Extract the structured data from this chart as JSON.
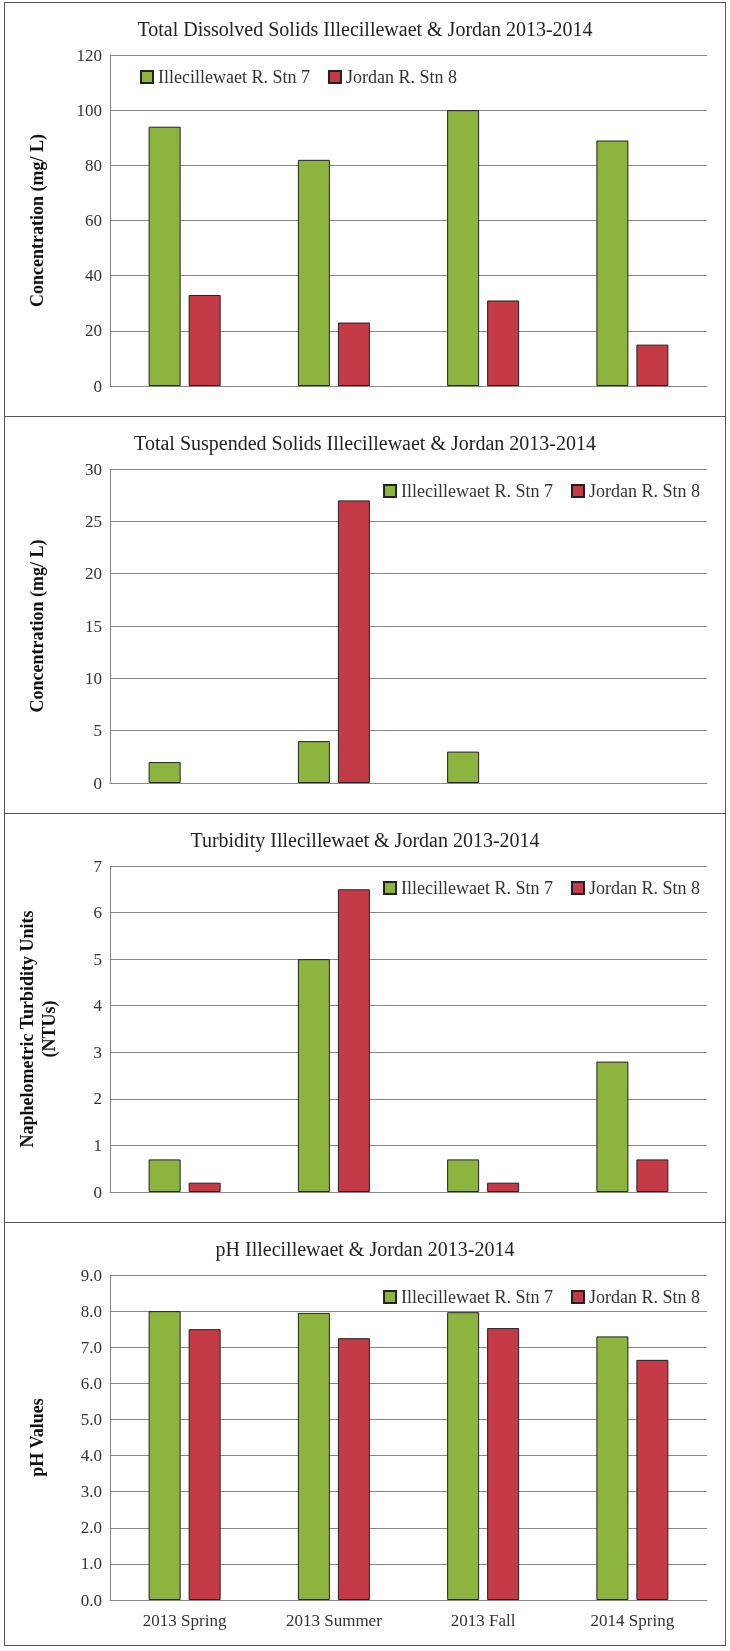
{
  "chart_data": [
    {
      "type": "bar",
      "title": "Total Dissolved Solids Illecillewaet & Jordan 2013-2014",
      "ylabel": "Concentration (mg/ L)",
      "categories": [
        null,
        null,
        null,
        null
      ],
      "series": [
        {
          "name": "Illecillewaet R. Stn 7",
          "color": "#8db43f",
          "values": [
            94,
            82,
            100,
            89
          ]
        },
        {
          "name": "Jordan R. Stn 8",
          "color": "#c43a46",
          "values": [
            33,
            23,
            31,
            15
          ]
        }
      ],
      "ylim": [
        0,
        120
      ],
      "yticks": [
        0,
        20,
        40,
        60,
        80,
        100,
        120
      ],
      "grid": "y",
      "legend": "top left",
      "tick_labels": "y"
    },
    {
      "type": "bar",
      "title": "Total Suspended Solids Illecillewaet & Jordan 2013-2014",
      "ylabel": "Concentration (mg/ L)",
      "categories": [
        null,
        null,
        null,
        null
      ],
      "series": [
        {
          "name": "Illecillewaet R. Stn 7",
          "color": "#8db43f",
          "values": [
            2,
            4,
            3,
            null
          ]
        },
        {
          "name": "Jordan R. Stn 8",
          "color": "#c43a46",
          "values": [
            null,
            27,
            null,
            null
          ]
        }
      ],
      "ylim": [
        0,
        30
      ],
      "yticks": [
        0,
        5,
        10,
        15,
        20,
        25,
        30
      ],
      "grid": "y",
      "legend": "top right",
      "tick_labels": "y"
    },
    {
      "type": "bar",
      "title": "Turbidity Illecillewaet & Jordan 2013-2014",
      "ylabel": "Naphelometric Turbidity Units (NTUs)",
      "categories": [
        null,
        null,
        null,
        null
      ],
      "series": [
        {
          "name": "Illecillewaet R. Stn 7",
          "color": "#8db43f",
          "values": [
            0.7,
            5,
            0.7,
            2.8
          ]
        },
        {
          "name": "Jordan R. Stn 8",
          "color": "#c43a46",
          "values": [
            0.2,
            6.5,
            0.2,
            0.7
          ]
        }
      ],
      "ylim": [
        0,
        7
      ],
      "yticks": [
        0,
        1,
        2,
        3,
        4,
        5,
        6,
        7
      ],
      "grid": "y",
      "legend": "top right",
      "tick_labels": "y"
    },
    {
      "type": "bar",
      "title": "pH Illecillewaet & Jordan 2013-2014",
      "ylabel": "pH Values",
      "categories": [
        "2013 Spring",
        "2013 Summer",
        "2013 Fall",
        "2014 Spring"
      ],
      "series": [
        {
          "name": "Illecillewaet R. Stn 7",
          "color": "#8db43f",
          "values": [
            8.0,
            7.95,
            7.97,
            7.3
          ]
        },
        {
          "name": "Jordan R. Stn 8",
          "color": "#c43a46",
          "values": [
            7.5,
            7.25,
            7.53,
            6.65
          ]
        }
      ],
      "ylim": [
        0,
        9
      ],
      "yticks": [
        {
          "value": 0,
          "label": "0.0"
        },
        {
          "value": 1,
          "label": "1.0"
        },
        {
          "value": 2,
          "label": "2.0"
        },
        {
          "value": 3,
          "label": "3.0"
        },
        {
          "value": 4,
          "label": "4.0"
        },
        {
          "value": 5,
          "label": "5.0"
        },
        {
          "value": 6,
          "label": "6.0"
        },
        {
          "value": 7,
          "label": "7.0"
        },
        {
          "value": 8,
          "label": "8.0"
        },
        {
          "value": 9,
          "label": "9.0"
        }
      ],
      "grid": "y",
      "legend": "top right"
    }
  ]
}
